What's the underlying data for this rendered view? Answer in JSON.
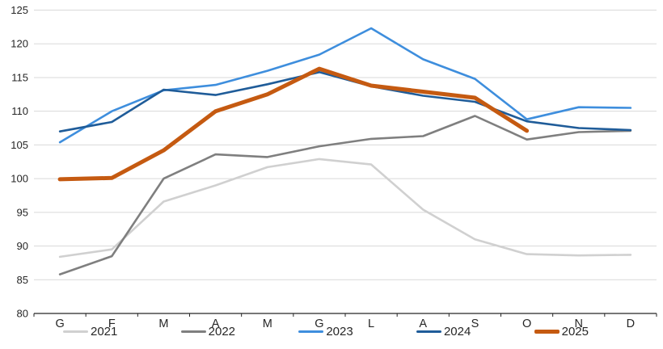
{
  "chart_data": {
    "type": "line",
    "categories": [
      "G",
      "F",
      "M",
      "A",
      "M",
      "G",
      "L",
      "A",
      "S",
      "O",
      "N",
      "D"
    ],
    "y_axis": {
      "min": 80,
      "max": 125,
      "step": 5,
      "tick_labels": [
        "80",
        "85",
        "90",
        "95",
        "100",
        "105",
        "110",
        "115",
        "120",
        "125"
      ]
    },
    "grid": true,
    "legend_position": "bottom",
    "axis_color": "#262626",
    "gridline_color": "#d9d9d9",
    "series": [
      {
        "name": "2021",
        "color": "#d0d0d0",
        "thick": false,
        "values": [
          88.4,
          89.5,
          96.6,
          99.0,
          101.7,
          102.9,
          102.1,
          95.4,
          91.0,
          88.8,
          88.6,
          88.7
        ]
      },
      {
        "name": "2022",
        "color": "#7f7f7f",
        "thick": false,
        "values": [
          85.8,
          88.5,
          100.0,
          103.6,
          103.2,
          104.8,
          105.9,
          106.3,
          109.3,
          105.8,
          106.9,
          107.1
        ]
      },
      {
        "name": "2023",
        "color": "#3e8edd",
        "thick": false,
        "values": [
          105.4,
          110.0,
          113.1,
          113.9,
          116.0,
          118.4,
          122.3,
          117.7,
          114.8,
          108.8,
          110.6,
          110.5
        ]
      },
      {
        "name": "2024",
        "color": "#1f5c99",
        "thick": false,
        "values": [
          107.0,
          108.4,
          113.2,
          112.4,
          114.0,
          115.8,
          113.7,
          112.3,
          111.4,
          108.5,
          107.5,
          107.2
        ]
      },
      {
        "name": "2025",
        "color": "#c55a11",
        "thick": true,
        "values": [
          99.9,
          100.1,
          104.2,
          110.0,
          112.5,
          116.3,
          113.8,
          112.9,
          112.0,
          107.1
        ]
      }
    ]
  }
}
